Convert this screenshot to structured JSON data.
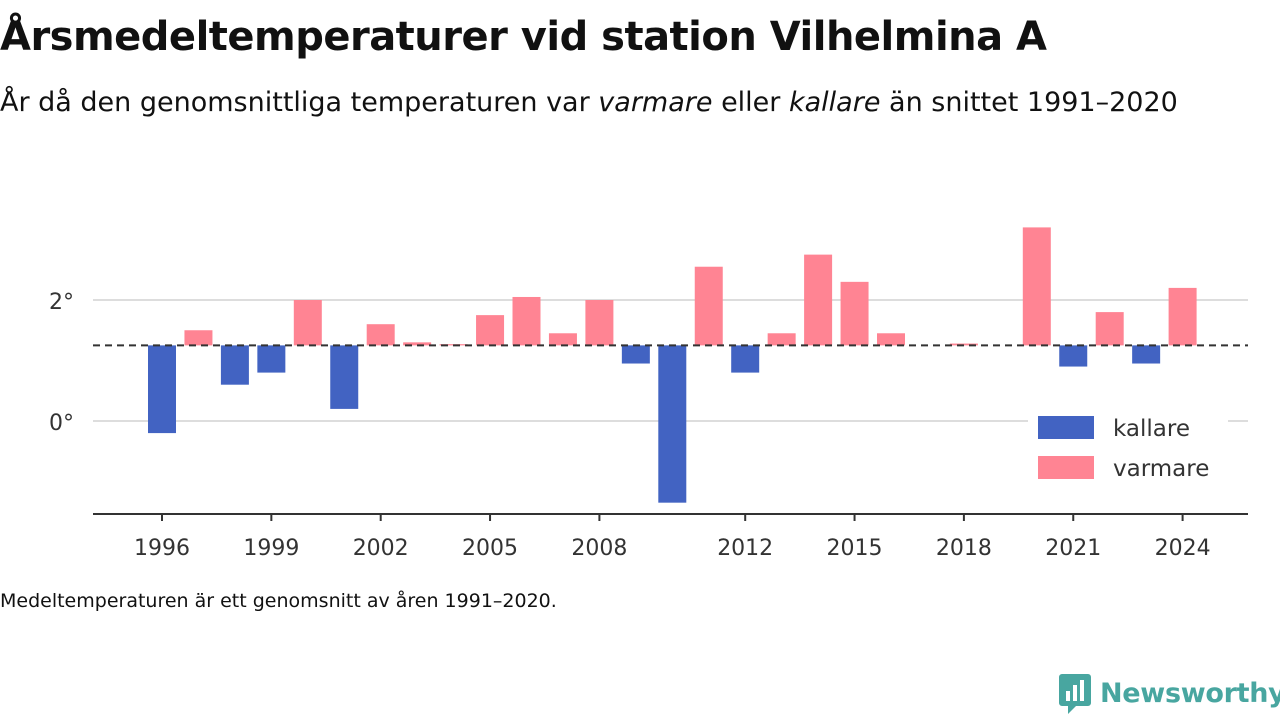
{
  "title": "Årsmedeltemperaturer vid station Vilhelmina A",
  "subtitle": {
    "part1": "År då den genomsnittliga temperaturen var ",
    "warm_word": "varmare",
    "part2": " eller ",
    "cold_word": "kallare",
    "part3": " än snittet 1991–2020"
  },
  "note": "Medeltemperaturen är ett genomsnitt av åren 1991–2020.",
  "brand": "Newsworthy",
  "colors": {
    "kallare": "#4263c2",
    "varmare": "#ff8493",
    "reference": "#333333",
    "grid": "#dddddd",
    "brand": "#48a6a0"
  },
  "chart_data": {
    "type": "bar",
    "baseline": 1.25,
    "ylim": [
      -1.5,
      3.5
    ],
    "yticks": [
      0,
      2
    ],
    "ytick_labels": [
      "0°",
      "2°"
    ],
    "xticks": [
      1996,
      1999,
      2002,
      2005,
      2008,
      2012,
      2015,
      2018,
      2021,
      2024
    ],
    "legend": {
      "position": "bottom-right",
      "entries": [
        {
          "key": "kallare",
          "label": "kallare"
        },
        {
          "key": "varmare",
          "label": "varmare"
        }
      ]
    },
    "x": [
      1996,
      1997,
      1998,
      1999,
      2000,
      2001,
      2002,
      2003,
      2004,
      2005,
      2006,
      2007,
      2008,
      2009,
      2010,
      2011,
      2012,
      2013,
      2014,
      2015,
      2016,
      2017,
      2018,
      2019,
      2020,
      2021,
      2022,
      2023,
      2024
    ],
    "values": [
      -0.2,
      1.5,
      0.6,
      0.8,
      2.0,
      0.2,
      1.6,
      1.3,
      1.27,
      1.75,
      2.05,
      1.45,
      2.0,
      0.95,
      -1.35,
      2.55,
      0.8,
      1.45,
      2.75,
      2.3,
      1.45,
      null,
      1.28,
      null,
      3.2,
      0.9,
      1.8,
      0.95,
      2.2
    ]
  }
}
